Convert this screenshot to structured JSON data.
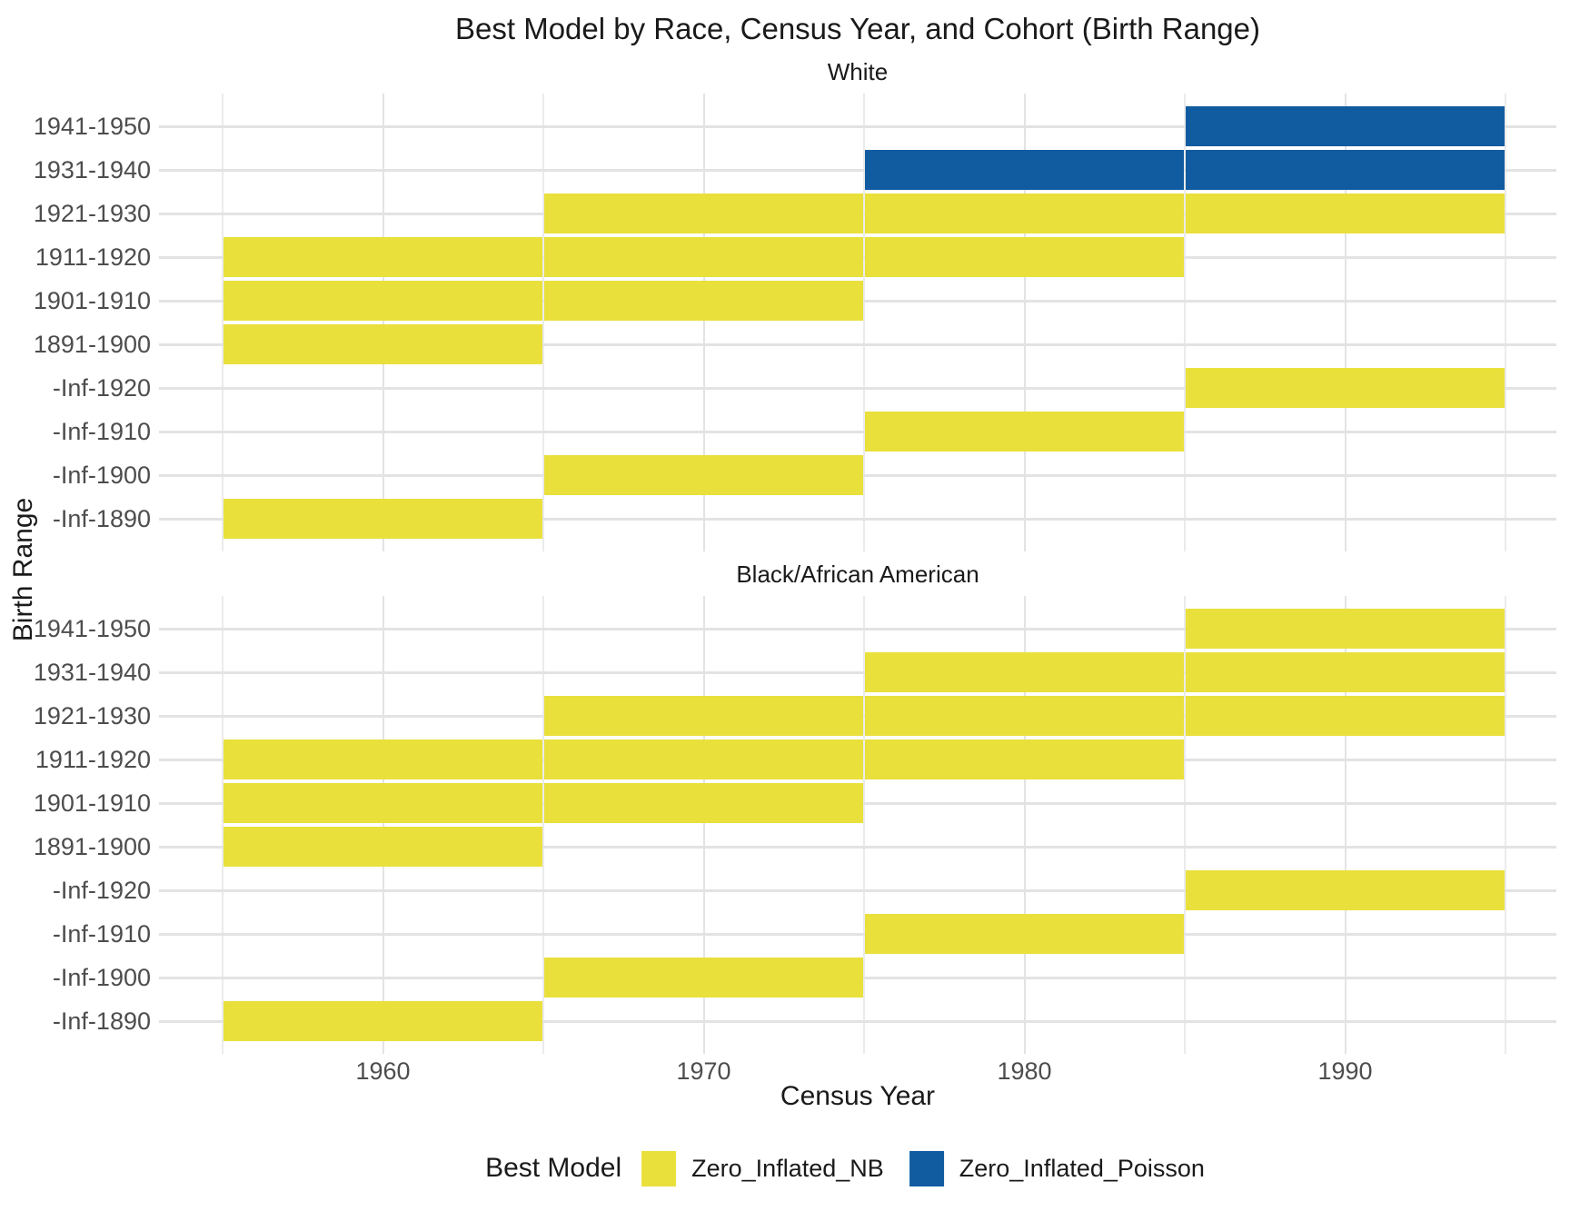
{
  "chart_data": {
    "type": "heatmap",
    "title": "Best Model by Race, Census Year, and Cohort (Birth Range)",
    "xlabel": "Census Year",
    "ylabel": "Birth Range",
    "x_ticks": [
      1960,
      1970,
      1980,
      1990
    ],
    "tile_x_span_years": 10,
    "y_categories_top_to_bottom": [
      "1941-1950",
      "1931-1940",
      "1921-1930",
      "1911-1920",
      "1901-1910",
      "1891-1900",
      "-Inf-1920",
      "-Inf-1910",
      "-Inf-1900",
      "-Inf-1890"
    ],
    "grid": "on",
    "legend_position": "bottom",
    "model_colors": {
      "Zero_Inflated_NB": "#e9e03c",
      "Zero_Inflated_Poisson": "#115ca0"
    },
    "legend": {
      "title": "Best Model",
      "entries": [
        {
          "label": "Zero_Inflated_NB",
          "color": "#e9e03c"
        },
        {
          "label": "Zero_Inflated_Poisson",
          "color": "#115ca0"
        }
      ]
    },
    "facets": [
      {
        "label": "White",
        "tiles": [
          {
            "birth_range": "1941-1950",
            "census_year": 1990,
            "model": "Zero_Inflated_Poisson"
          },
          {
            "birth_range": "1931-1940",
            "census_year": 1980,
            "model": "Zero_Inflated_Poisson"
          },
          {
            "birth_range": "1931-1940",
            "census_year": 1990,
            "model": "Zero_Inflated_Poisson"
          },
          {
            "birth_range": "1921-1930",
            "census_year": 1970,
            "model": "Zero_Inflated_NB"
          },
          {
            "birth_range": "1921-1930",
            "census_year": 1980,
            "model": "Zero_Inflated_NB"
          },
          {
            "birth_range": "1921-1930",
            "census_year": 1990,
            "model": "Zero_Inflated_NB"
          },
          {
            "birth_range": "1911-1920",
            "census_year": 1960,
            "model": "Zero_Inflated_NB"
          },
          {
            "birth_range": "1911-1920",
            "census_year": 1970,
            "model": "Zero_Inflated_NB"
          },
          {
            "birth_range": "1911-1920",
            "census_year": 1980,
            "model": "Zero_Inflated_NB"
          },
          {
            "birth_range": "1901-1910",
            "census_year": 1960,
            "model": "Zero_Inflated_NB"
          },
          {
            "birth_range": "1901-1910",
            "census_year": 1970,
            "model": "Zero_Inflated_NB"
          },
          {
            "birth_range": "1891-1900",
            "census_year": 1960,
            "model": "Zero_Inflated_NB"
          },
          {
            "birth_range": "-Inf-1920",
            "census_year": 1990,
            "model": "Zero_Inflated_NB"
          },
          {
            "birth_range": "-Inf-1910",
            "census_year": 1980,
            "model": "Zero_Inflated_NB"
          },
          {
            "birth_range": "-Inf-1900",
            "census_year": 1970,
            "model": "Zero_Inflated_NB"
          },
          {
            "birth_range": "-Inf-1890",
            "census_year": 1960,
            "model": "Zero_Inflated_NB"
          }
        ]
      },
      {
        "label": "Black/African American",
        "tiles": [
          {
            "birth_range": "1941-1950",
            "census_year": 1990,
            "model": "Zero_Inflated_NB"
          },
          {
            "birth_range": "1931-1940",
            "census_year": 1980,
            "model": "Zero_Inflated_NB"
          },
          {
            "birth_range": "1931-1940",
            "census_year": 1990,
            "model": "Zero_Inflated_NB"
          },
          {
            "birth_range": "1921-1930",
            "census_year": 1970,
            "model": "Zero_Inflated_NB"
          },
          {
            "birth_range": "1921-1930",
            "census_year": 1980,
            "model": "Zero_Inflated_NB"
          },
          {
            "birth_range": "1921-1930",
            "census_year": 1990,
            "model": "Zero_Inflated_NB"
          },
          {
            "birth_range": "1911-1920",
            "census_year": 1960,
            "model": "Zero_Inflated_NB"
          },
          {
            "birth_range": "1911-1920",
            "census_year": 1970,
            "model": "Zero_Inflated_NB"
          },
          {
            "birth_range": "1911-1920",
            "census_year": 1980,
            "model": "Zero_Inflated_NB"
          },
          {
            "birth_range": "1901-1910",
            "census_year": 1960,
            "model": "Zero_Inflated_NB"
          },
          {
            "birth_range": "1901-1910",
            "census_year": 1970,
            "model": "Zero_Inflated_NB"
          },
          {
            "birth_range": "1891-1900",
            "census_year": 1960,
            "model": "Zero_Inflated_NB"
          },
          {
            "birth_range": "-Inf-1920",
            "census_year": 1990,
            "model": "Zero_Inflated_NB"
          },
          {
            "birth_range": "-Inf-1910",
            "census_year": 1980,
            "model": "Zero_Inflated_NB"
          },
          {
            "birth_range": "-Inf-1900",
            "census_year": 1970,
            "model": "Zero_Inflated_NB"
          },
          {
            "birth_range": "-Inf-1890",
            "census_year": 1960,
            "model": "Zero_Inflated_NB"
          }
        ]
      }
    ]
  }
}
